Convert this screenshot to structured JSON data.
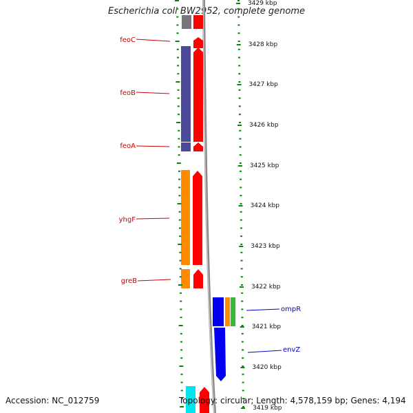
{
  "title": "Escherichia coli BW2952, complete genome",
  "footer": {
    "accession": "Accession: NC_012759",
    "summary": "Topology: circular; Length: 4,578,159 bp; Genes: 4,194"
  },
  "colors": {
    "forward_cds": "#ff0000",
    "blue_cds": "#0000ee",
    "purple_cds": "#4b4b9a",
    "orange_cds": "#ff8c00",
    "green_cds": "#33bb33",
    "cyan_cds": "#00e5ee",
    "tick": "#008800",
    "backbone": "#9a9a9a",
    "label_forward": "#cc0000",
    "label_reverse": "#0000cc"
  },
  "genes_left": [
    {
      "name": "feoC"
    },
    {
      "name": "feoB"
    },
    {
      "name": "feoA"
    },
    {
      "name": "yhgF"
    },
    {
      "name": "greB"
    }
  ],
  "genes_right": [
    {
      "name": "ompR"
    },
    {
      "name": "envZ"
    }
  ],
  "scale_labels": [
    "3429 kbp",
    "3428 kbp",
    "3427 kbp",
    "3426 kbp",
    "3425 kbp",
    "3424 kbp",
    "3423 kbp",
    "3422 kbp",
    "3421 kbp",
    "3420 kbp",
    "3419 kbp"
  ]
}
